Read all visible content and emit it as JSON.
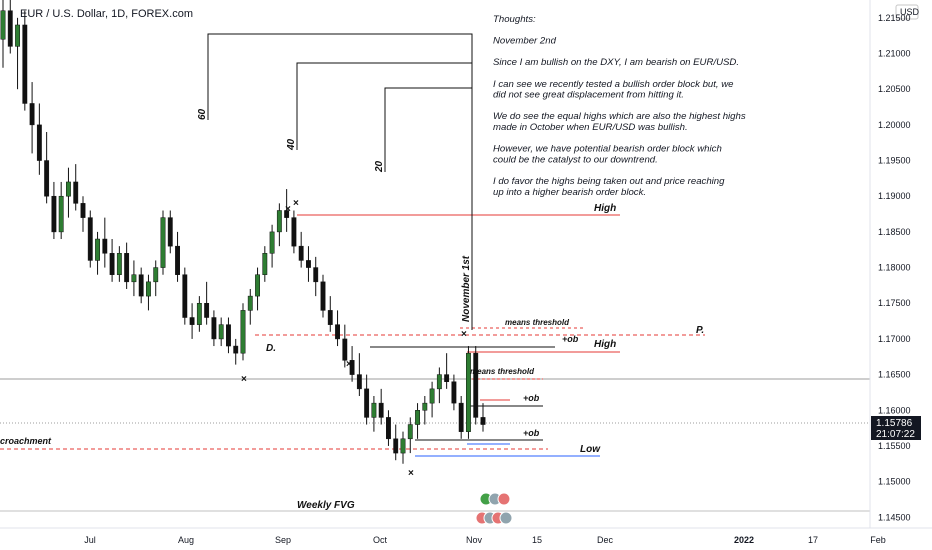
{
  "symbol_title": "EUR / U.S. Dollar, 1D, FOREX.com",
  "currency": "USD",
  "price_badge": {
    "price": "1.15786",
    "countdown": "21:07:22",
    "color": "#131722"
  },
  "notes": [
    "Thoughts:",
    "",
    "November 2nd",
    "",
    "Since I am bullish on the DXY, I am bearish on EUR/USD.",
    "",
    "I can see we recently tested a bullish order block but, we",
    "did not see great displacement from hitting it.",
    "",
    "We do see the equal highs which are also the highest highs",
    "made in October when EUR/USD was bullish.",
    "",
    "However, we have potential bearish order block which",
    "could be the catalyst to our downtrend.",
    "",
    "I do favor the highs being taken out and price reaching",
    "up into a higher bearish order block."
  ],
  "annotations": {
    "high_top": "High",
    "high_mid": "High",
    "low": "Low",
    "means_threshold_top": "means threshold",
    "means_threshold_mid": "means threshold",
    "ob_top": "+ob",
    "ob_mid": "+ob",
    "ob_low": "+ob",
    "p_label": "P.",
    "d_label": "D.",
    "encroachment": "croachment",
    "weekly_fvg": "Weekly FVG",
    "cycle_60": "60",
    "cycle_40": "40",
    "cycle_20": "20",
    "november_1st": "November 1st"
  },
  "colors": {
    "up": "#2e7d32",
    "down": "#111111",
    "red_line": "#e53935",
    "blue_line": "#2962ff",
    "grid_line": "#b0b0b0"
  },
  "chart_data": {
    "type": "candlestick",
    "title": "EUR / U.S. Dollar, 1D, FOREX.com",
    "y_axis_ticks": [
      1.215,
      1.21,
      1.205,
      1.2,
      1.195,
      1.19,
      1.185,
      1.18,
      1.175,
      1.17,
      1.165,
      1.16,
      1.155,
      1.15,
      1.145
    ],
    "x_axis_ticks": [
      "Jul",
      "Aug",
      "Sep",
      "Oct",
      "Nov",
      "15",
      "Dec",
      "2022",
      "17",
      "Feb"
    ],
    "ylim": [
      1.1435,
      1.2175
    ],
    "last_price": 1.15786,
    "candles": [
      [
        1.212,
        1.218,
        1.208,
        1.216
      ],
      [
        1.216,
        1.2175,
        1.21,
        1.211
      ],
      [
        1.211,
        1.215,
        1.205,
        1.214
      ],
      [
        1.214,
        1.216,
        1.202,
        1.203
      ],
      [
        1.203,
        1.206,
        1.196,
        1.2
      ],
      [
        1.2,
        1.203,
        1.193,
        1.195
      ],
      [
        1.195,
        1.199,
        1.189,
        1.19
      ],
      [
        1.19,
        1.192,
        1.184,
        1.185
      ],
      [
        1.185,
        1.192,
        1.184,
        1.19
      ],
      [
        1.19,
        1.194,
        1.187,
        1.192
      ],
      [
        1.192,
        1.1945,
        1.188,
        1.189
      ],
      [
        1.189,
        1.19,
        1.185,
        1.187
      ],
      [
        1.187,
        1.188,
        1.18,
        1.181
      ],
      [
        1.181,
        1.185,
        1.179,
        1.184
      ],
      [
        1.184,
        1.187,
        1.18,
        1.182
      ],
      [
        1.182,
        1.184,
        1.178,
        1.179
      ],
      [
        1.179,
        1.183,
        1.178,
        1.182
      ],
      [
        1.182,
        1.1835,
        1.177,
        1.178
      ],
      [
        1.178,
        1.181,
        1.176,
        1.179
      ],
      [
        1.179,
        1.18,
        1.175,
        1.176
      ],
      [
        1.176,
        1.179,
        1.174,
        1.178
      ],
      [
        1.178,
        1.181,
        1.176,
        1.18
      ],
      [
        1.18,
        1.188,
        1.179,
        1.187
      ],
      [
        1.187,
        1.188,
        1.182,
        1.183
      ],
      [
        1.183,
        1.185,
        1.178,
        1.179
      ],
      [
        1.179,
        1.18,
        1.172,
        1.173
      ],
      [
        1.173,
        1.175,
        1.17,
        1.172
      ],
      [
        1.172,
        1.176,
        1.171,
        1.175
      ],
      [
        1.175,
        1.178,
        1.172,
        1.173
      ],
      [
        1.173,
        1.174,
        1.169,
        1.17
      ],
      [
        1.17,
        1.173,
        1.169,
        1.172
      ],
      [
        1.172,
        1.173,
        1.168,
        1.169
      ],
      [
        1.169,
        1.17,
        1.1664,
        1.168
      ],
      [
        1.168,
        1.175,
        1.167,
        1.174
      ],
      [
        1.174,
        1.177,
        1.172,
        1.176
      ],
      [
        1.176,
        1.18,
        1.174,
        1.179
      ],
      [
        1.179,
        1.183,
        1.178,
        1.182
      ],
      [
        1.182,
        1.186,
        1.18,
        1.185
      ],
      [
        1.185,
        1.189,
        1.183,
        1.188
      ],
      [
        1.188,
        1.191,
        1.185,
        1.187
      ],
      [
        1.187,
        1.188,
        1.182,
        1.183
      ],
      [
        1.183,
        1.185,
        1.18,
        1.181
      ],
      [
        1.181,
        1.183,
        1.178,
        1.18
      ],
      [
        1.18,
        1.1815,
        1.176,
        1.178
      ],
      [
        1.178,
        1.179,
        1.173,
        1.174
      ],
      [
        1.174,
        1.176,
        1.171,
        1.172
      ],
      [
        1.172,
        1.174,
        1.169,
        1.17
      ],
      [
        1.17,
        1.172,
        1.166,
        1.167
      ],
      [
        1.167,
        1.169,
        1.164,
        1.165
      ],
      [
        1.165,
        1.168,
        1.162,
        1.163
      ],
      [
        1.163,
        1.165,
        1.158,
        1.159
      ],
      [
        1.159,
        1.162,
        1.157,
        1.161
      ],
      [
        1.161,
        1.163,
        1.158,
        1.159
      ],
      [
        1.159,
        1.16,
        1.155,
        1.156
      ],
      [
        1.156,
        1.158,
        1.153,
        1.154
      ],
      [
        1.154,
        1.157,
        1.1525,
        1.156
      ],
      [
        1.156,
        1.159,
        1.154,
        1.158
      ],
      [
        1.158,
        1.161,
        1.156,
        1.16
      ],
      [
        1.16,
        1.162,
        1.158,
        1.161
      ],
      [
        1.161,
        1.164,
        1.159,
        1.163
      ],
      [
        1.163,
        1.166,
        1.161,
        1.165
      ],
      [
        1.165,
        1.168,
        1.163,
        1.164
      ],
      [
        1.164,
        1.165,
        1.16,
        1.161
      ],
      [
        1.161,
        1.162,
        1.156,
        1.157
      ],
      [
        1.157,
        1.169,
        1.156,
        1.168
      ],
      [
        1.168,
        1.169,
        1.158,
        1.159
      ],
      [
        1.159,
        1.161,
        1.157,
        1.158
      ]
    ]
  }
}
